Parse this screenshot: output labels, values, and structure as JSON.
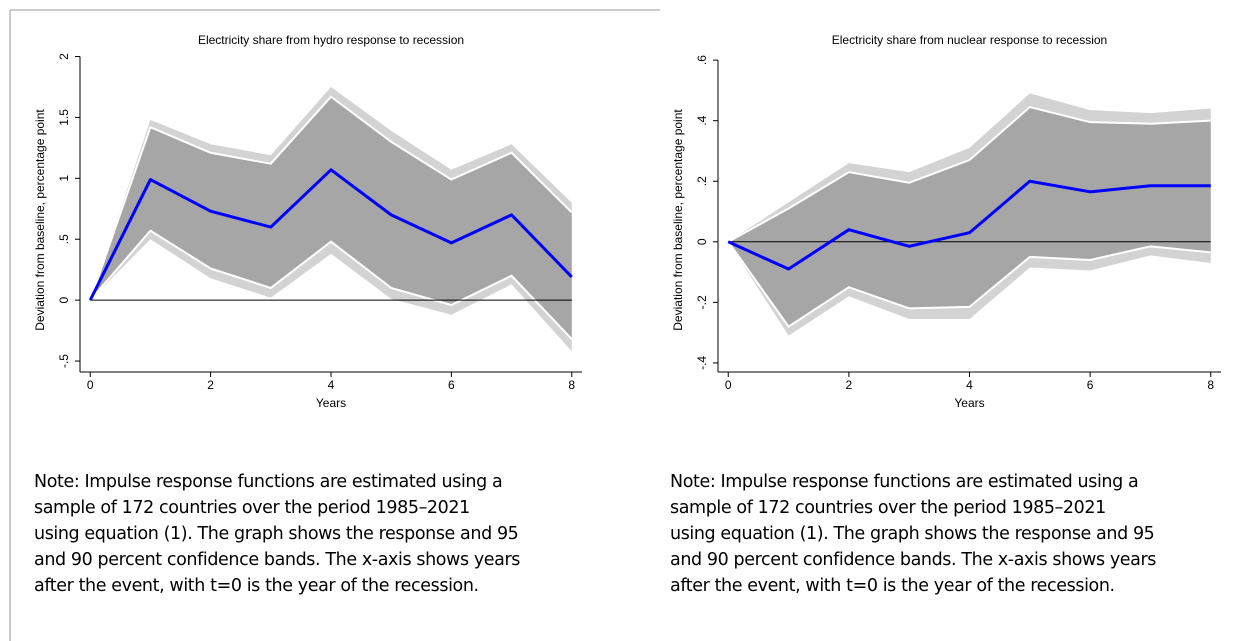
{
  "charts": [
    {
      "chart_data": {
        "type": "line",
        "title": "Electricity share from hydro response to recession",
        "x_label": "Years",
        "y_label": "Deviation from baseline, percentage point",
        "x": [
          0,
          1,
          2,
          3,
          4,
          5,
          6,
          7,
          8
        ],
        "values": [
          0,
          0.99,
          0.73,
          0.6,
          1.07,
          0.7,
          0.47,
          0.7,
          0.19
        ],
        "color": "#0000ff",
        "ci95": {
          "lower": [
            0,
            0.5,
            0.18,
            0.02,
            0.38,
            0.01,
            -0.12,
            0.13,
            -0.42
          ],
          "upper": [
            0,
            1.48,
            1.28,
            1.19,
            1.75,
            1.39,
            1.07,
            1.28,
            0.8
          ],
          "color": "#d3d3d3"
        },
        "ci90": {
          "lower": [
            0,
            0.57,
            0.26,
            0.1,
            0.48,
            0.1,
            -0.04,
            0.2,
            -0.32
          ],
          "upper": [
            0,
            1.42,
            1.21,
            1.12,
            1.67,
            1.3,
            0.99,
            1.21,
            0.72
          ],
          "color": "#a6a6a6"
        },
        "xlim": [
          -0.17,
          8.17
        ],
        "xticks": [
          0,
          2,
          4,
          6,
          8
        ],
        "ylim": [
          -0.59,
          2.07
        ],
        "yticks": [
          {
            "value": -0.5,
            "label": "-.5"
          },
          0,
          {
            "value": 0.5,
            "label": ".5"
          },
          1,
          {
            "value": 1.5,
            "label": "1.5"
          },
          2
        ],
        "note_lines": [
          "Note: Impulse response functions are estimated using a",
          "sample of 172 countries over the period 1985–2021",
          "using equation (1). The graph shows the response and 95",
          "and 90 percent confidence bands. The x-axis shows years",
          "after the event, with t=0 is the year of the recession."
        ]
      }
    },
    {
      "chart_data": {
        "type": "line",
        "title": "Electricity share from nuclear response to recession",
        "x_label": "Years",
        "y_label": "Deviation from baseline, percentage point",
        "x": [
          0,
          1,
          2,
          3,
          4,
          5,
          6,
          7,
          8
        ],
        "values": [
          0,
          -0.09,
          0.04,
          -0.015,
          0.03,
          0.2,
          0.165,
          0.185,
          0.185
        ],
        "color": "#0000ff",
        "ci95": {
          "lower": [
            0,
            -0.31,
            -0.18,
            -0.255,
            -0.255,
            -0.085,
            -0.095,
            -0.045,
            -0.07
          ],
          "upper": [
            0,
            0.13,
            0.26,
            0.23,
            0.31,
            0.49,
            0.435,
            0.425,
            0.44
          ],
          "color": "#d3d3d3"
        },
        "ci90": {
          "lower": [
            0,
            -0.28,
            -0.15,
            -0.22,
            -0.215,
            -0.05,
            -0.06,
            -0.015,
            -0.035
          ],
          "upper": [
            0,
            0.11,
            0.23,
            0.195,
            0.27,
            0.445,
            0.395,
            0.39,
            0.4
          ],
          "color": "#a6a6a6"
        },
        "xlim": [
          -0.17,
          8.17
        ],
        "xticks": [
          0,
          2,
          4,
          6,
          8
        ],
        "ylim": [
          -0.43,
          0.64
        ],
        "yticks": [
          {
            "value": -0.4,
            "label": "-.4"
          },
          {
            "value": -0.2,
            "label": "-.2"
          },
          0,
          {
            "value": 0.2,
            "label": ".2"
          },
          {
            "value": 0.4,
            "label": ".4"
          },
          {
            "value": 0.6,
            "label": ".6"
          }
        ],
        "note_lines": [
          "Note: Impulse response functions are estimated using a",
          "sample of 172 countries over the period 1985–2021",
          "using equation (1). The graph shows the response and 95",
          "and 90 percent confidence bands. The x-axis shows years",
          "after the event, with t=0 is the year of the recession."
        ]
      }
    }
  ]
}
